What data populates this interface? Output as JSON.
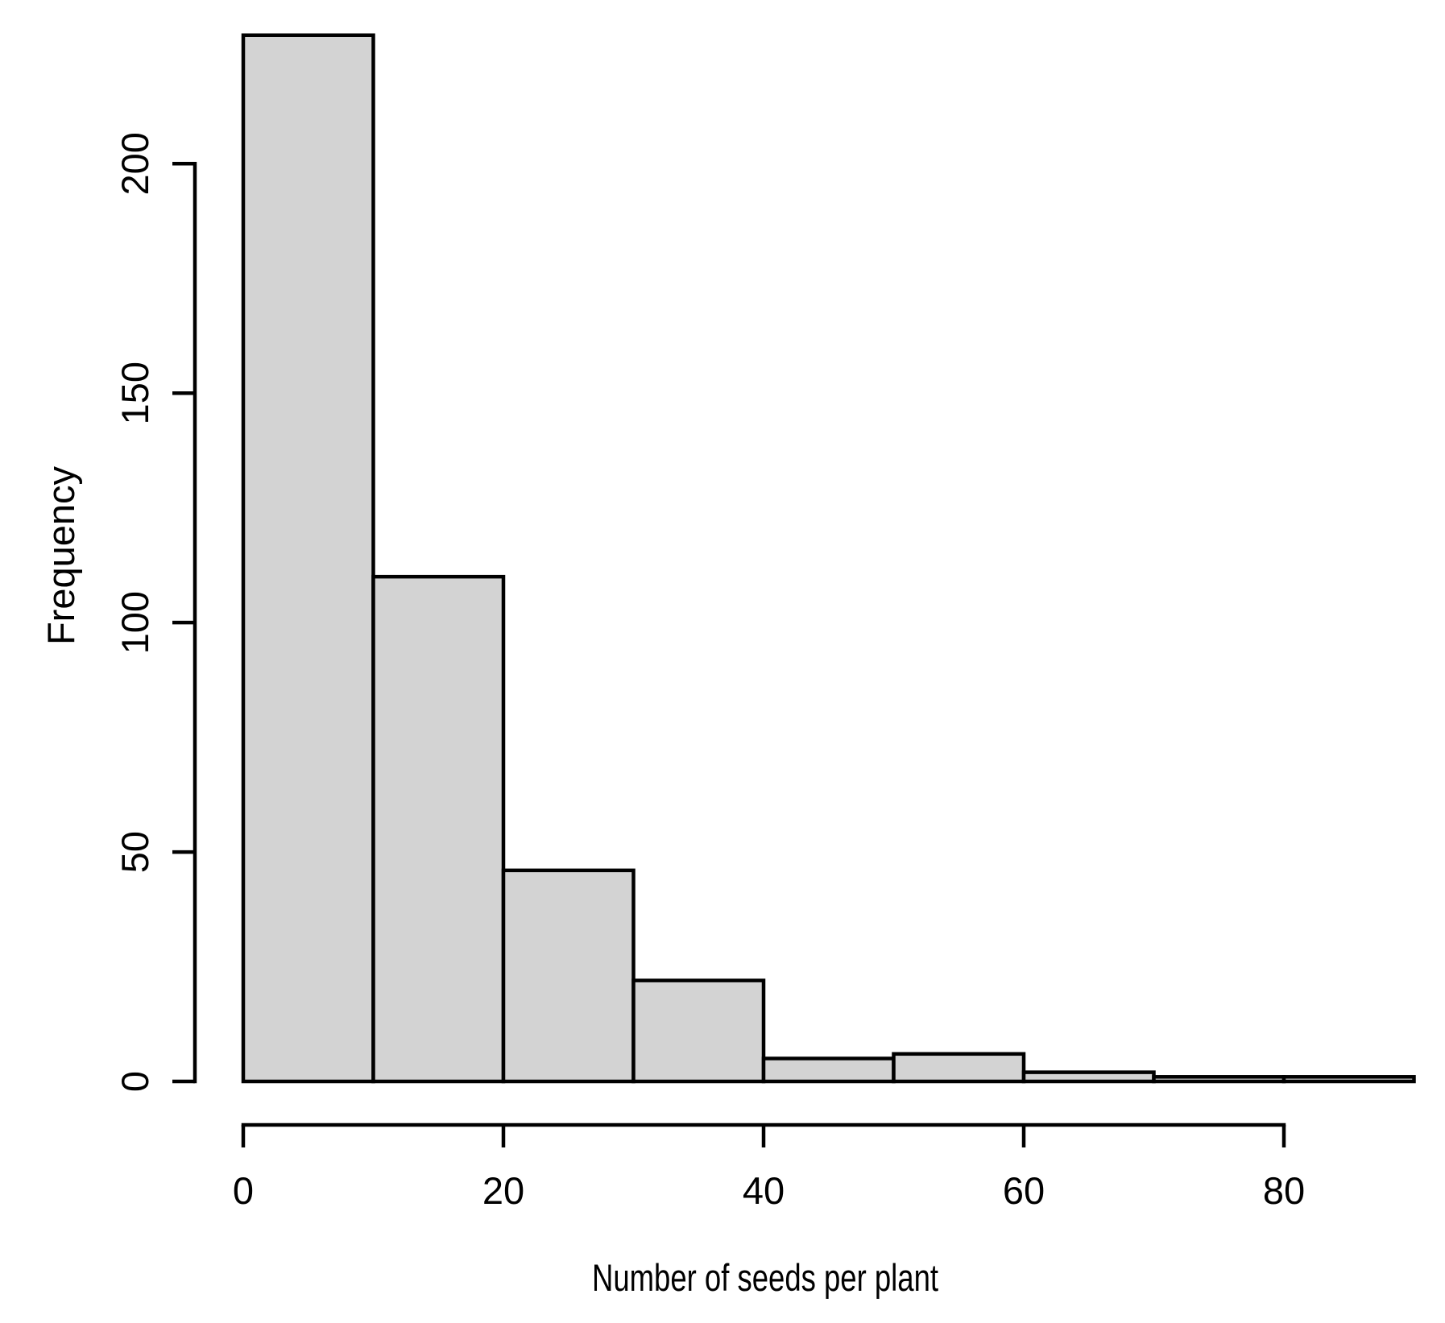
{
  "chart_data": {
    "type": "bar",
    "subtype": "histogram",
    "title": "",
    "xlabel": "Number of seeds per plant",
    "ylabel": "Frequency",
    "bin_edges": [
      0,
      10,
      20,
      30,
      40,
      50,
      60,
      70,
      80,
      90
    ],
    "counts": [
      228,
      110,
      46,
      22,
      5,
      6,
      2,
      1,
      1
    ],
    "x_ticks": [
      "0",
      "20",
      "40",
      "60",
      "80"
    ],
    "x_tick_values": [
      0,
      20,
      40,
      60,
      80
    ],
    "y_ticks": [
      "0",
      "50",
      "100",
      "150",
      "200"
    ],
    "y_tick_values": [
      0,
      50,
      100,
      150,
      200
    ],
    "xlim": [
      0,
      90
    ],
    "ylim": [
      0,
      228
    ],
    "grid": false,
    "legend": false,
    "colors": {
      "bar_fill": "#d3d3d3",
      "bar_stroke": "#000000",
      "axis": "#000000",
      "text": "#000000",
      "background": "#ffffff"
    }
  }
}
